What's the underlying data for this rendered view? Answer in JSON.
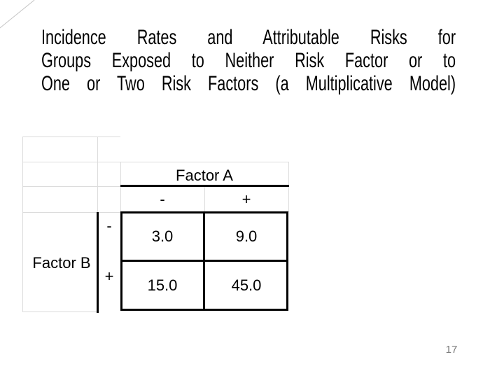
{
  "slide": {
    "title_lines": [
      "Incidence Rates and Attributable Risks for",
      "Groups Exposed to Neither Risk Factor or to",
      "One or Two Risk Factors (a Multiplicative Model)"
    ],
    "page_number": "17"
  },
  "table": {
    "col_group_label": "Factor A",
    "row_group_label": "Factor B",
    "col_headers": [
      "-",
      "+"
    ],
    "row_headers": [
      "-",
      "+"
    ],
    "cells": [
      [
        "3.0",
        "9.0"
      ],
      [
        "15.0",
        "45.0"
      ]
    ]
  },
  "colors": {
    "background": "#ffffff",
    "grid_line": "#dcdcdc",
    "table_line": "#000000",
    "title_text": "#000000",
    "page_number_text": "#7a7a7a"
  },
  "chart_data": {
    "type": "table",
    "title": "Incidence Rates and Attributable Risks for Groups Exposed to Neither Risk Factor or to One or Two Risk Factors (a Multiplicative Model)",
    "column_axis_label": "Factor A",
    "row_axis_label": "Factor B",
    "columns": [
      "-",
      "+"
    ],
    "rows": [
      "-",
      "+"
    ],
    "values": [
      [
        3.0,
        9.0
      ],
      [
        15.0,
        45.0
      ]
    ]
  }
}
